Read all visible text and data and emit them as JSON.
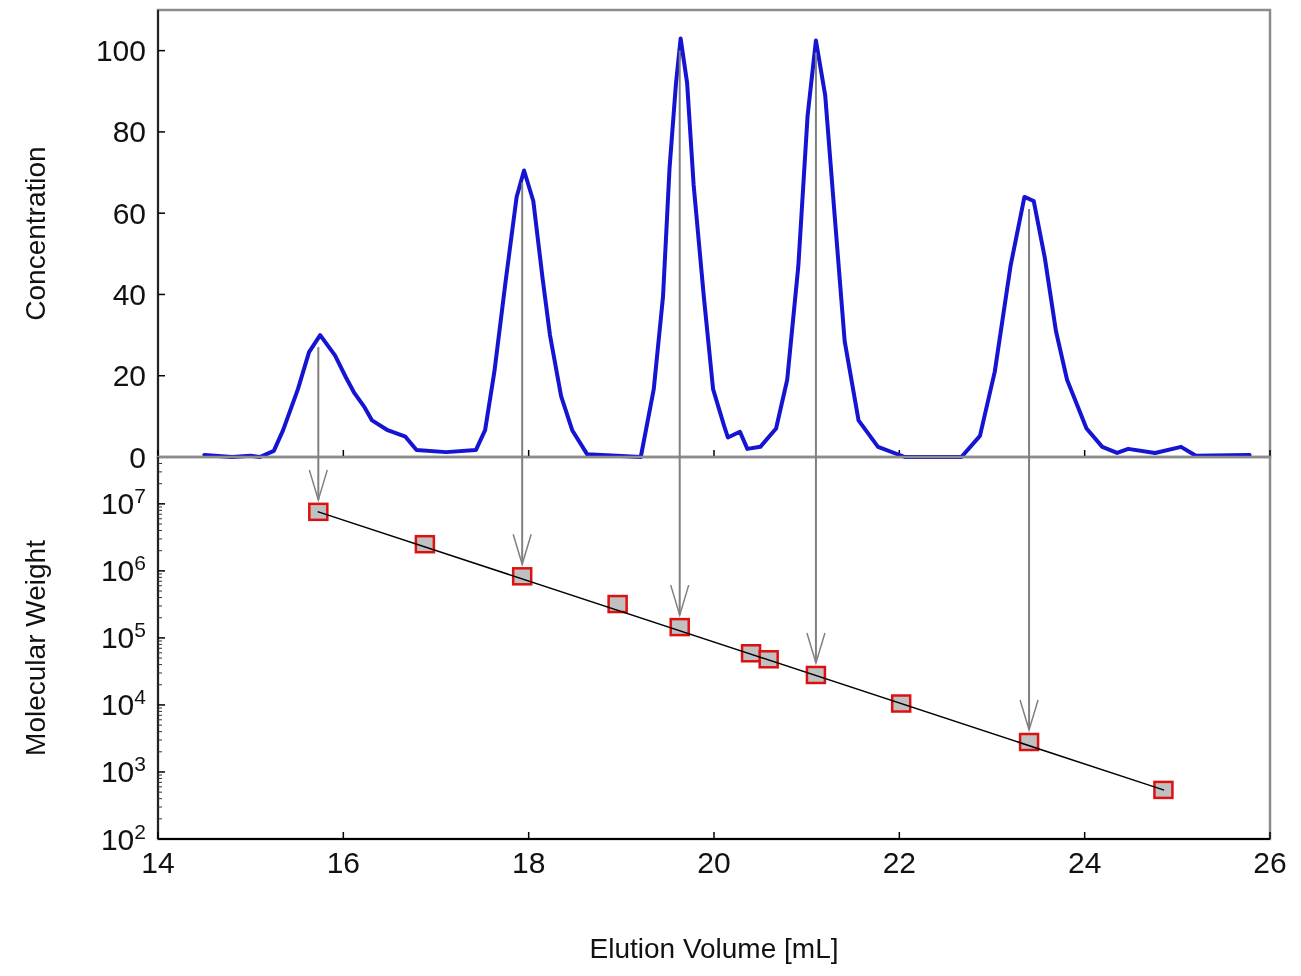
{
  "chart_data": [
    {
      "type": "line",
      "ylabel": "Concentration",
      "xlim": [
        14,
        26
      ],
      "xticks": [
        14,
        16,
        18,
        20,
        22,
        24,
        26
      ],
      "ylim": [
        0,
        110
      ],
      "yticks": [
        0,
        20,
        40,
        60,
        80,
        100
      ],
      "tick_labels": "y",
      "line_style": "solid",
      "series": [
        {
          "color": "#1414d2",
          "x": [
            14.5,
            14.8,
            15.0,
            15.1,
            15.25,
            15.35,
            15.51,
            15.63,
            15.75,
            15.91,
            16.03,
            16.12,
            16.23,
            16.31,
            16.47,
            16.67,
            16.79,
            17.11,
            17.43,
            17.53,
            17.63,
            17.75,
            17.87,
            17.95,
            18.05,
            18.15,
            18.23,
            18.35,
            18.47,
            18.63,
            19.21,
            19.35,
            19.45,
            19.52,
            19.59,
            19.64,
            19.71,
            19.78,
            19.89,
            19.99,
            20.11,
            20.15,
            20.28,
            20.36,
            20.5,
            20.67,
            20.79,
            20.91,
            21.01,
            21.1,
            21.2,
            21.3,
            21.41,
            21.56,
            21.77,
            22.06,
            22.67,
            22.87,
            23.03,
            23.2,
            23.35,
            23.45,
            23.57,
            23.69,
            23.81,
            24.02,
            24.19,
            24.35,
            24.47,
            24.76,
            25.04,
            25.2,
            25.78
          ],
          "values": [
            0.5,
            0,
            0.3,
            0,
            1.5,
            6.6,
            16.7,
            25.8,
            30,
            25,
            19.5,
            15.7,
            12.2,
            9,
            6.7,
            5,
            1.7,
            1.2,
            1.7,
            6.6,
            21,
            43,
            64,
            70.5,
            63,
            44,
            30,
            15,
            6.6,
            0.7,
            0,
            16.7,
            39.5,
            71,
            92,
            103,
            92,
            67,
            39.5,
            16.7,
            7.6,
            4.8,
            6.2,
            2,
            2.5,
            7,
            19,
            47,
            84,
            102.5,
            89,
            60,
            28.5,
            9,
            2.5,
            0,
            0,
            5.2,
            21,
            47,
            64,
            63,
            49,
            31,
            19,
            7,
            2.5,
            1,
            2,
            1,
            2.5,
            0.3,
            0.5
          ]
        }
      ]
    },
    {
      "type": "scatter",
      "ylabel": "Molecular Weight",
      "xlabel": "Elution Volume [mL]",
      "xlim": [
        14,
        26
      ],
      "xticks": [
        14,
        16,
        18,
        20,
        22,
        24,
        26
      ],
      "log": "y",
      "ylim": [
        100,
        50000000
      ],
      "yticks": [
        {
          "value": 100,
          "label": "10$^{2}$"
        },
        {
          "value": 1000,
          "label": "10$^{3}$"
        },
        {
          "value": 10000,
          "label": "10$^{4}$"
        },
        {
          "value": 100000,
          "label": "10$^{5}$"
        },
        {
          "value": 1000000,
          "label": "10$^{6}$"
        },
        {
          "value": 10000000,
          "label": "10$^{7}$"
        }
      ],
      "marker": "square",
      "series": [
        {
          "color": "#dd1111",
          "x": [
            15.73,
            16.88,
            17.93,
            18.96,
            19.63,
            20.4,
            20.59,
            21.1,
            22.02,
            23.4,
            24.85
          ],
          "values": [
            7600000,
            2500000,
            830000,
            320000,
            145000,
            59000,
            48000,
            28000,
            10500,
            2800,
            540
          ]
        },
        {
          "type": "line",
          "marker": "none",
          "color": "#000000",
          "x": [
            15.73,
            24.85
          ],
          "values": [
            7600000,
            540
          ]
        }
      ]
    }
  ]
}
